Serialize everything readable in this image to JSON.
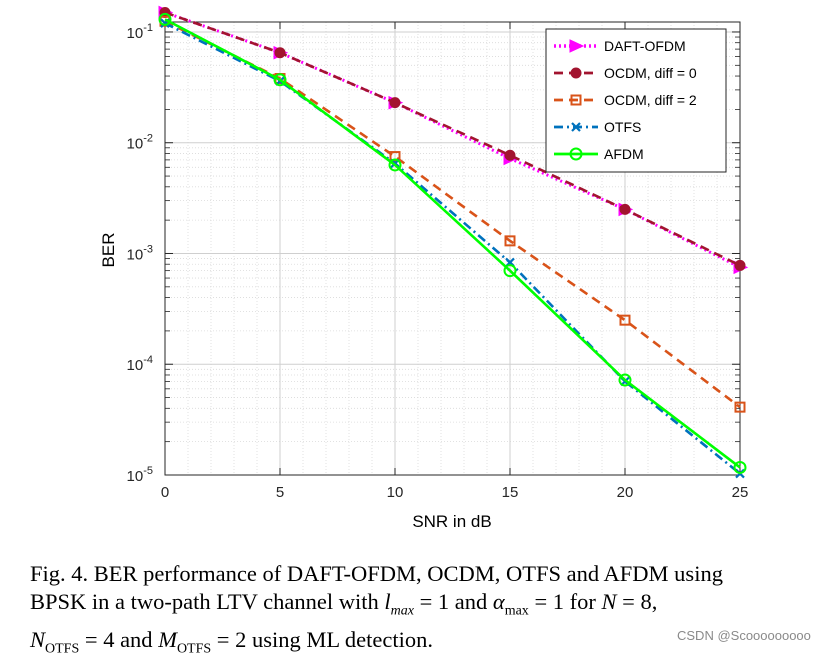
{
  "chart_data": {
    "type": "line",
    "title": "",
    "xlabel": "SNR in dB",
    "ylabel": "BER",
    "xlim": [
      0,
      25
    ],
    "ylim_exponent": [
      -5,
      -1
    ],
    "yscale": "log",
    "x_ticks": [
      "0",
      "5",
      "10",
      "15",
      "20",
      "25"
    ],
    "y_ticks": [
      {
        "base": "10",
        "exp": "-1"
      },
      {
        "base": "10",
        "exp": "-2"
      },
      {
        "base": "10",
        "exp": "-3"
      },
      {
        "base": "10",
        "exp": "-4"
      },
      {
        "base": "10",
        "exp": "-5"
      }
    ],
    "grid": true,
    "legend_position": "top-right",
    "x": [
      0,
      5,
      10,
      15,
      20,
      25
    ],
    "series": [
      {
        "name": "DAFT-OFDM",
        "color": "#ff00ff",
        "marker": "triangle-right",
        "line": "dotted",
        "values": [
          0.15,
          0.065,
          0.023,
          0.0072,
          0.0025,
          0.00075
        ]
      },
      {
        "name": "OCDM, diff = 0",
        "color": "#a2142f",
        "marker": "circle-filled",
        "line": "dashed",
        "values": [
          0.15,
          0.065,
          0.023,
          0.0077,
          0.0025,
          0.00078
        ]
      },
      {
        "name": "OCDM, diff = 2",
        "color": "#d95319",
        "marker": "square",
        "line": "dashed",
        "values": [
          0.125,
          0.038,
          0.0075,
          0.0013,
          0.00025,
          4.1e-05
        ]
      },
      {
        "name": "OTFS",
        "color": "#0072bd",
        "marker": "x",
        "line": "dashdot",
        "values": [
          0.12,
          0.036,
          0.0065,
          0.00083,
          7e-05,
          1.03e-05
        ]
      },
      {
        "name": "AFDM",
        "color": "#00ff00",
        "marker": "circle-open",
        "line": "solid",
        "values": [
          0.13,
          0.037,
          0.0063,
          0.0007,
          7.2e-05,
          1.17e-05
        ]
      }
    ]
  },
  "caption": {
    "line1": "Fig. 4.  BER performance of DAFT-OFDM, OCDM, OTFS and AFDM using",
    "line2_a": "BPSK in a two-path LTV channel with ",
    "line2_lmax_base": "l",
    "line2_lmax_sub": "max",
    "line2_eq1": " = 1 and ",
    "line2_alpha_base": "α",
    "line2_alpha_sub": "max",
    "line2_eq2": " = 1 for ",
    "line2_N": "N",
    "line2_eq3": " = 8,",
    "line3_N": "N",
    "line3_N_sub": "OTFS",
    "line3_eq1": " = 4 and ",
    "line3_M": "M",
    "line3_M_sub": "OTFS",
    "line3_eq2": " = 2 using ML detection."
  },
  "watermark": "CSDN @Scooooooooo"
}
